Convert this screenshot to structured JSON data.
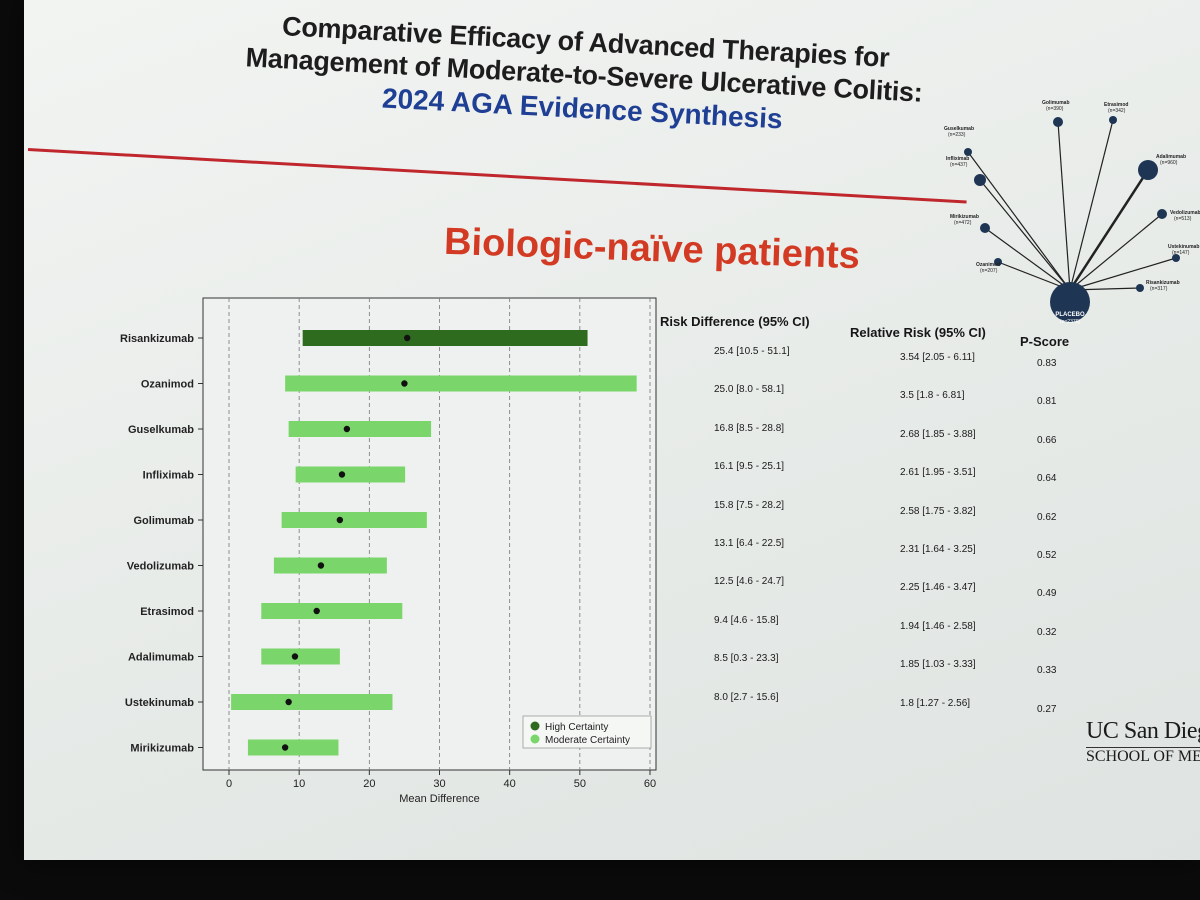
{
  "slide": {
    "title_line1": "Comparative Efficacy of Advanced Therapies for",
    "title_line2": "Management of Moderate-to-Severe Ulcerative Colitis:",
    "subtitle": "2024 AGA Evidence Synthesis",
    "heading": "Biologic-naïve patients",
    "logo_line1": "UC San Diego",
    "logo_line2": "SCHOOL OF MEDICINE",
    "colors": {
      "heading": "#d23a23",
      "subtitle": "#1f3f95",
      "high": "#2e6b1f",
      "moderate": "#7ad66a",
      "rule": "#c0272d"
    }
  },
  "chart_data": {
    "type": "forest",
    "xlabel": "Mean Difference",
    "xlim": [
      -2,
      60
    ],
    "xticks": [
      0,
      10,
      20,
      30,
      40,
      50,
      60
    ],
    "grid": "vertical dashed",
    "legend_placement": "bottom-right",
    "legend": [
      {
        "label": "High Certainty",
        "color": "#2e6b1f"
      },
      {
        "label": "Moderate Certainty",
        "color": "#7ad66a"
      }
    ],
    "rows": [
      {
        "drug": "Risankizumab",
        "estimate": 25.4,
        "low": 10.5,
        "high": 51.1,
        "certainty": "High Certainty"
      },
      {
        "drug": "Ozanimod",
        "estimate": 25.0,
        "low": 8.0,
        "high": 58.1,
        "certainty": "Moderate Certainty"
      },
      {
        "drug": "Guselkumab",
        "estimate": 16.8,
        "low": 8.5,
        "high": 28.8,
        "certainty": "Moderate Certainty"
      },
      {
        "drug": "Infliximab",
        "estimate": 16.1,
        "low": 9.5,
        "high": 25.1,
        "certainty": "Moderate Certainty"
      },
      {
        "drug": "Golimumab",
        "estimate": 15.8,
        "low": 7.5,
        "high": 28.2,
        "certainty": "Moderate Certainty"
      },
      {
        "drug": "Vedolizumab",
        "estimate": 13.1,
        "low": 6.4,
        "high": 22.5,
        "certainty": "Moderate Certainty"
      },
      {
        "drug": "Etrasimod",
        "estimate": 12.5,
        "low": 4.6,
        "high": 24.7,
        "certainty": "Moderate Certainty"
      },
      {
        "drug": "Adalimumab",
        "estimate": 9.4,
        "low": 4.6,
        "high": 15.8,
        "certainty": "Moderate Certainty"
      },
      {
        "drug": "Ustekinumab",
        "estimate": 8.5,
        "low": 0.3,
        "high": 23.3,
        "certainty": "Moderate Certainty"
      },
      {
        "drug": "Mirikizumab",
        "estimate": 8.0,
        "low": 2.7,
        "high": 15.6,
        "certainty": "Moderate Certainty"
      }
    ]
  },
  "table": {
    "headers": {
      "rd": "Risk Difference (95% CI)",
      "rr": "Relative Risk (95% CI)",
      "p": "P-Score"
    },
    "rows": [
      {
        "rd": "25.4  [10.5 - 51.1]",
        "rr": "3.54  [2.05 - 6.11]",
        "p": "0.83"
      },
      {
        "rd": "25.0  [8.0 - 58.1]",
        "rr": "3.5    [1.8 - 6.81]",
        "p": "0.81"
      },
      {
        "rd": "16.8  [8.5 - 28.8]",
        "rr": "2.68  [1.85 - 3.88]",
        "p": "0.66"
      },
      {
        "rd": "16.1  [9.5 - 25.1]",
        "rr": "2.61  [1.95 - 3.51]",
        "p": "0.64"
      },
      {
        "rd": "15.8  [7.5 - 28.2]",
        "rr": "2.58  [1.75 - 3.82]",
        "p": "0.62"
      },
      {
        "rd": "13.1  [6.4 - 22.5]",
        "rr": "2.31  [1.64 - 3.25]",
        "p": "0.52"
      },
      {
        "rd": "12.5  [4.6 - 24.7]",
        "rr": "2.25  [1.46 - 3.47]",
        "p": "0.49"
      },
      {
        "rd": "9.4    [4.6 - 15.8]",
        "rr": "1.94  [1.46 - 2.58]",
        "p": "0.32"
      },
      {
        "rd": "8.5    [0.3 - 23.3]",
        "rr": "1.85  [1.03 - 3.33]",
        "p": "0.33"
      },
      {
        "rd": "8.0    [2.7 - 15.6]",
        "rr": "1.8    [1.27 - 2.56]",
        "p": "0.27"
      }
    ]
  },
  "network": {
    "center": {
      "name": "PLACEBO",
      "n": "(n=2376)"
    },
    "nodes": [
      {
        "name": "Guselkumab",
        "n": "(n=233)"
      },
      {
        "name": "Golimumab",
        "n": "(n=390)"
      },
      {
        "name": "Etrasimod",
        "n": "(n=342)"
      },
      {
        "name": "Infliximab",
        "n": "(n=437)"
      },
      {
        "name": "Adalimumab",
        "n": "(n=960)"
      },
      {
        "name": "Vedolizumab",
        "n": "(n=513)"
      },
      {
        "name": "Mirikizumab",
        "n": "(n=472)"
      },
      {
        "name": "Ustekinumab",
        "n": "(n=147)"
      },
      {
        "name": "Ozanimod",
        "n": "(n=207)"
      },
      {
        "name": "Risankizumab",
        "n": "(n=317)"
      }
    ]
  }
}
